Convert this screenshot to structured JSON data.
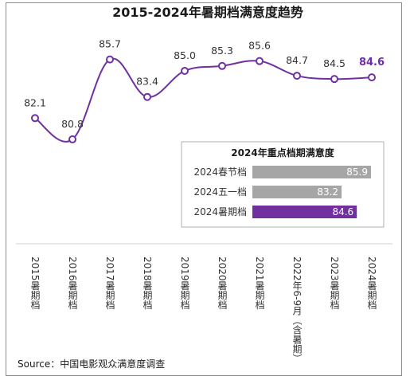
{
  "chart_data": [
    {
      "type": "line",
      "title": "2015-2024年暑期档满意度趋势",
      "categories": [
        "2015暑期档",
        "2016暑期档",
        "2017暑期档",
        "2018暑期档",
        "2019暑期档",
        "2020暑期档",
        "2021暑期档",
        "2022年6-9月（含暑期）",
        "2023暑期档",
        "2024暑期档"
      ],
      "values": [
        82.1,
        80.8,
        85.7,
        83.4,
        85.0,
        85.3,
        85.6,
        84.7,
        84.5,
        84.6
      ],
      "value_labels": [
        "82.1",
        "80.8",
        "85.7",
        "83.4",
        "85.0",
        "85.3",
        "85.6",
        "84.7",
        "84.5",
        "84.6"
      ],
      "ylim": [
        78.5,
        87
      ],
      "grid": false,
      "line_color": "#7030a0",
      "highlight_color": "#7030a0"
    },
    {
      "type": "bar",
      "orientation": "horizontal",
      "title": "2024年重点档期满意度",
      "categories": [
        "2024春节档",
        "2024五一档",
        "2024暑期档"
      ],
      "values": [
        85.9,
        83.2,
        84.6
      ],
      "value_labels": [
        "85.9",
        "83.2",
        "84.6"
      ],
      "xlim": [
        75,
        87
      ],
      "colors": [
        "#a6a6a6",
        "#a6a6a6",
        "#7030a0"
      ]
    }
  ],
  "source": "Source：中国电影观众满意度调查"
}
